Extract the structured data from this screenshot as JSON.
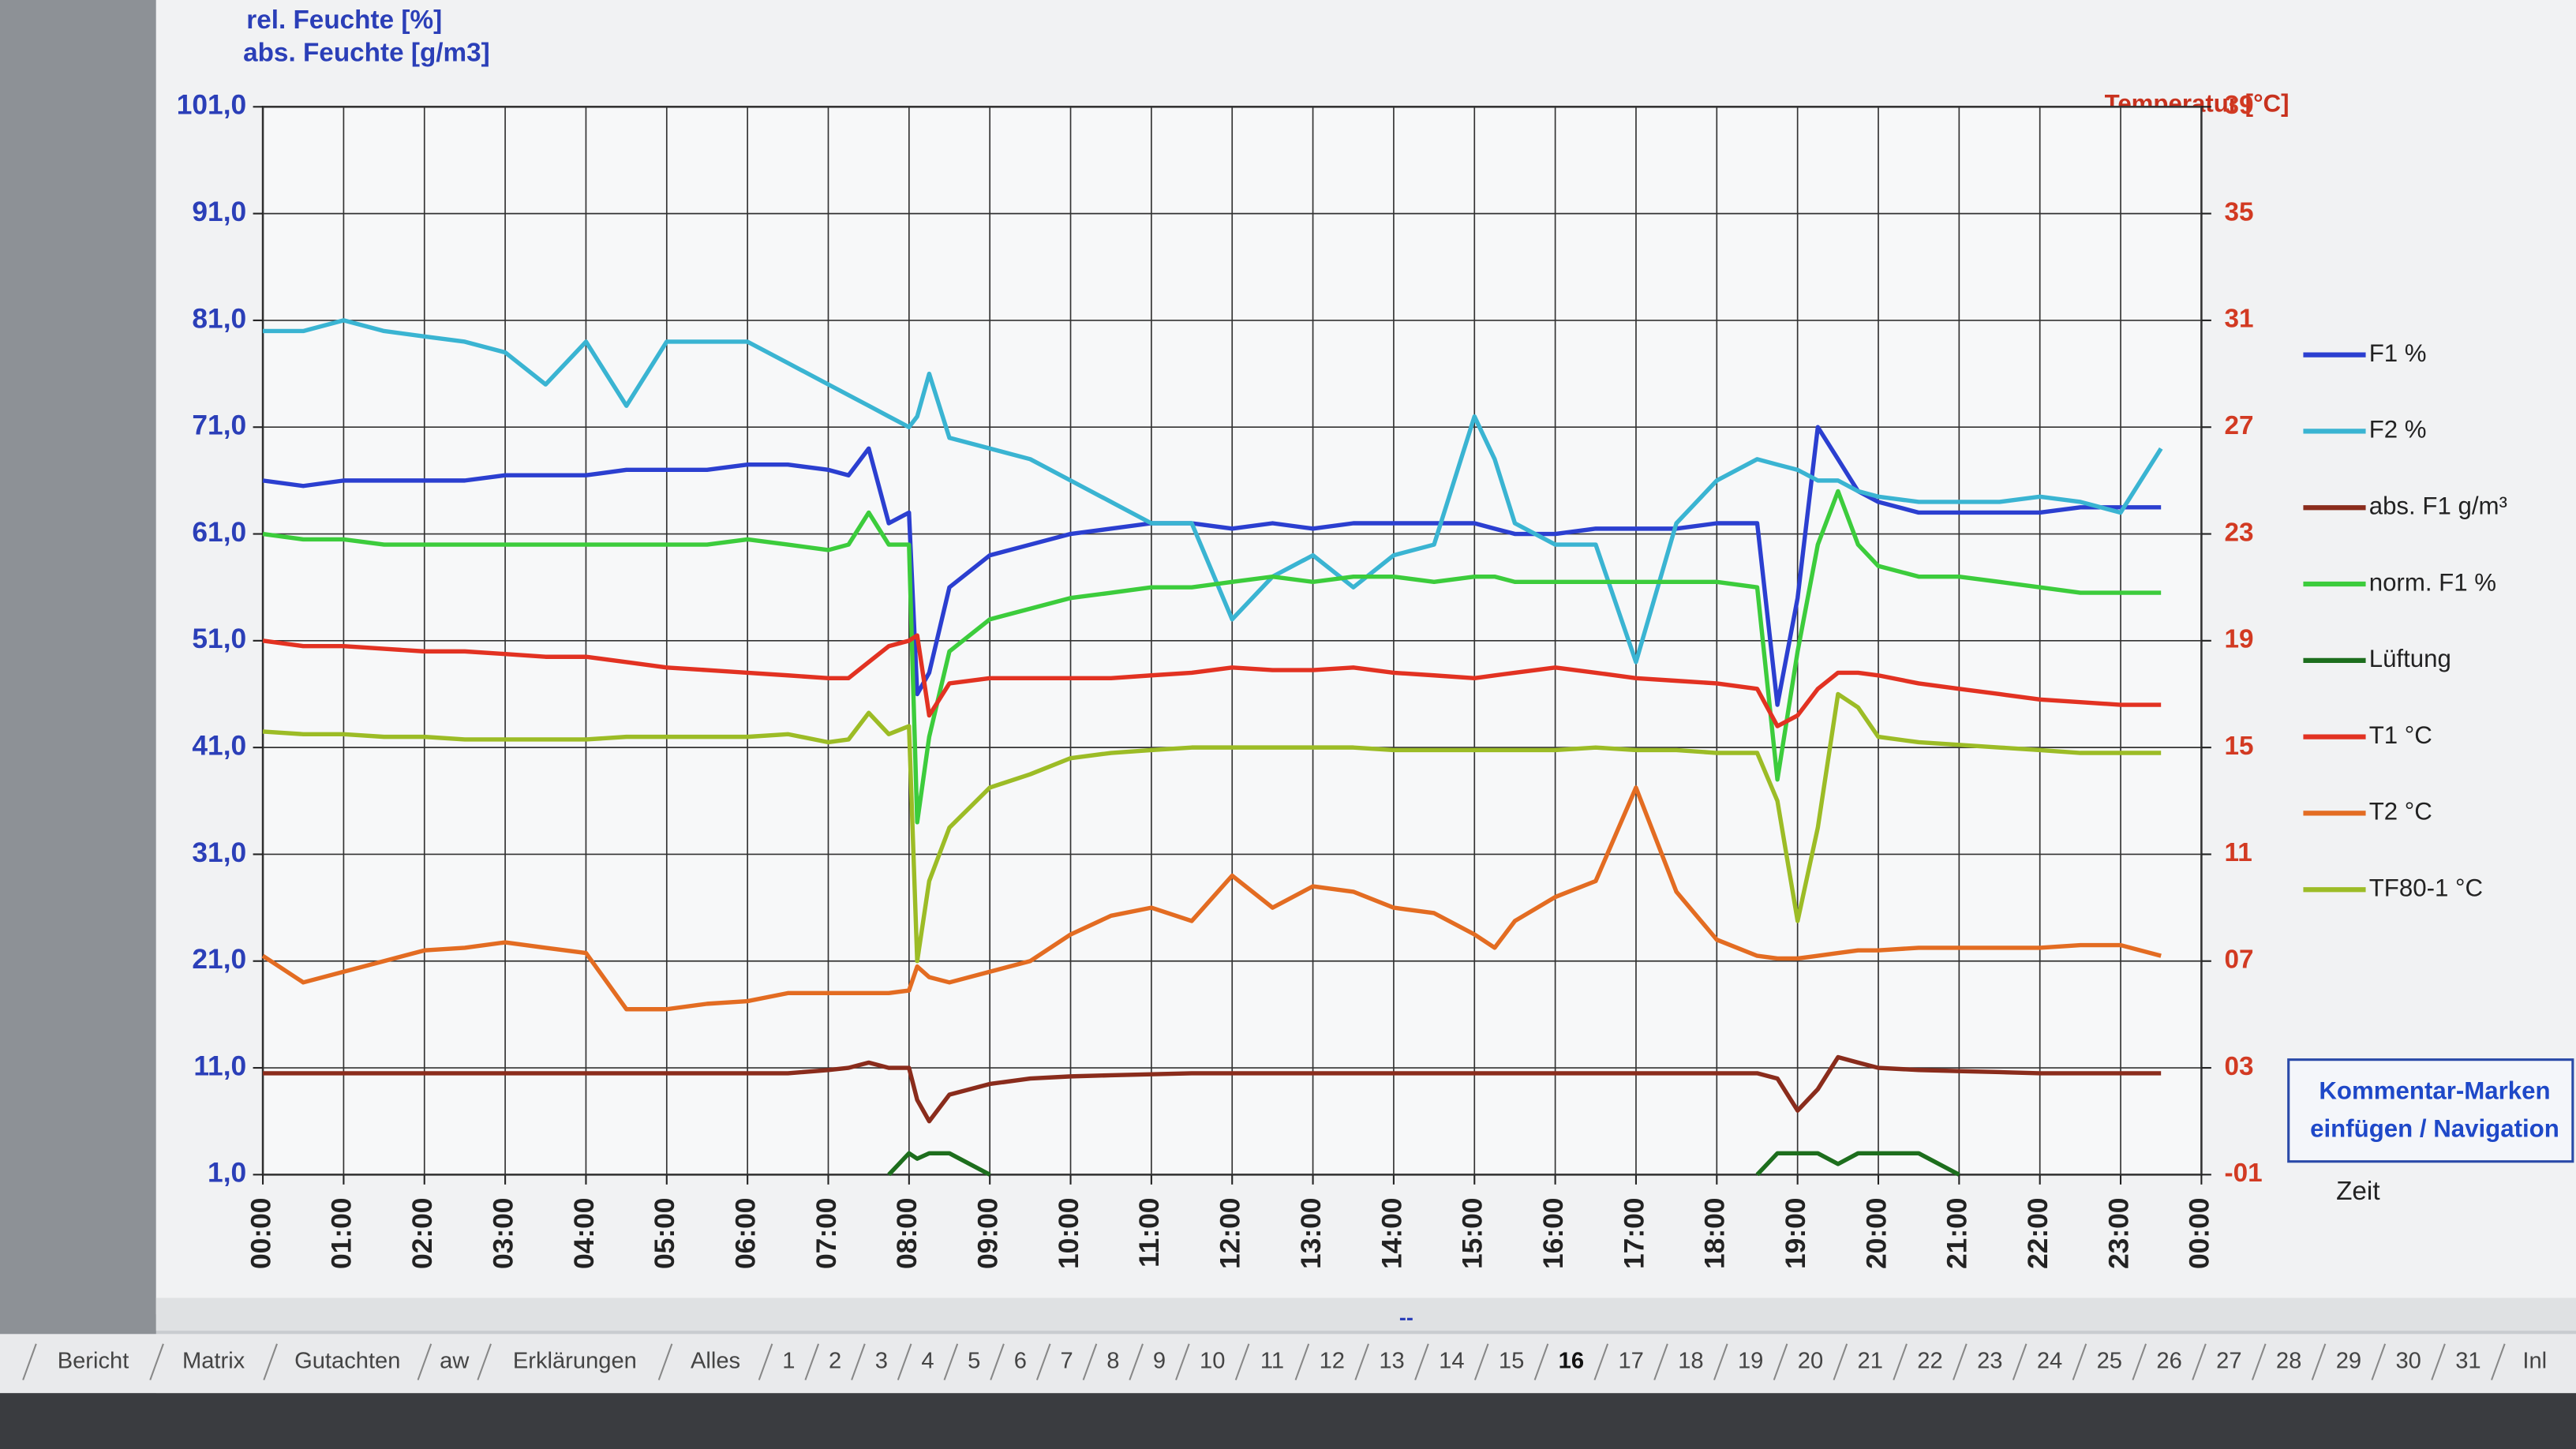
{
  "chart_data": {
    "type": "line",
    "y_label_lines": [
      "rel. Feuchte [%]",
      "abs. Feuchte [g/m3]"
    ],
    "y2_label": "Temperatur [°C]",
    "x_label": "Zeit",
    "x": [
      0,
      0.5,
      1,
      1.5,
      2,
      2.5,
      3,
      3.5,
      4,
      4.5,
      5,
      5.5,
      6,
      6.5,
      7,
      7.25,
      7.5,
      7.75,
      8,
      8.1,
      8.25,
      8.5,
      9,
      9.5,
      10,
      10.5,
      11,
      11.5,
      12,
      12.5,
      13,
      13.5,
      14,
      14.5,
      15,
      15.25,
      15.5,
      16,
      16.5,
      17,
      17.5,
      18,
      18.5,
      18.75,
      19,
      19.25,
      19.5,
      19.75,
      20,
      20.5,
      21,
      21.5,
      22,
      22.5,
      23,
      23.5
    ],
    "xlim": [
      0,
      24
    ],
    "xticks": [
      {
        "value": 0,
        "label": "00:00"
      },
      {
        "value": 1,
        "label": "01:00"
      },
      {
        "value": 2,
        "label": "02:00"
      },
      {
        "value": 3,
        "label": "03:00"
      },
      {
        "value": 4,
        "label": "04:00"
      },
      {
        "value": 5,
        "label": "05:00"
      },
      {
        "value": 6,
        "label": "06:00"
      },
      {
        "value": 7,
        "label": "07:00"
      },
      {
        "value": 8,
        "label": "08:00"
      },
      {
        "value": 9,
        "label": "09:00"
      },
      {
        "value": 10,
        "label": "10:00"
      },
      {
        "value": 11,
        "label": "11:00"
      },
      {
        "value": 12,
        "label": "12:00"
      },
      {
        "value": 13,
        "label": "13:00"
      },
      {
        "value": 14,
        "label": "14:00"
      },
      {
        "value": 15,
        "label": "15:00"
      },
      {
        "value": 16,
        "label": "16:00"
      },
      {
        "value": 17,
        "label": "17:00"
      },
      {
        "value": 18,
        "label": "18:00"
      },
      {
        "value": 19,
        "label": "19:00"
      },
      {
        "value": 20,
        "label": "20:00"
      },
      {
        "value": 21,
        "label": "21:00"
      },
      {
        "value": 22,
        "label": "22:00"
      },
      {
        "value": 23,
        "label": "23:00"
      },
      {
        "value": 24,
        "label": "00:00"
      }
    ],
    "ylim": [
      1,
      101
    ],
    "yticks": [
      {
        "value": 1,
        "label": "1,0"
      },
      {
        "value": 11,
        "label": "11,0"
      },
      {
        "value": 21,
        "label": "21,0"
      },
      {
        "value": 31,
        "label": "31,0"
      },
      {
        "value": 41,
        "label": "41,0"
      },
      {
        "value": 51,
        "label": "51,0"
      },
      {
        "value": 61,
        "label": "61,0"
      },
      {
        "value": 71,
        "label": "71,0"
      },
      {
        "value": 81,
        "label": "81,0"
      },
      {
        "value": 91,
        "label": "91,0"
      },
      {
        "value": 101,
        "label": "101,0"
      }
    ],
    "y2lim": [
      -1,
      39
    ],
    "y2ticks": [
      {
        "value": -1,
        "label": "-01"
      },
      {
        "value": 3,
        "label": "03"
      },
      {
        "value": 7,
        "label": "07"
      },
      {
        "value": 11,
        "label": "11"
      },
      {
        "value": 15,
        "label": "15"
      },
      {
        "value": 19,
        "label": "19"
      },
      {
        "value": 23,
        "label": "23"
      },
      {
        "value": 27,
        "label": "27"
      },
      {
        "value": 31,
        "label": "31"
      },
      {
        "value": 35,
        "label": "35"
      },
      {
        "value": 39,
        "label": "39"
      }
    ],
    "grid": true,
    "legend": "right",
    "series": [
      {
        "name": "F1 %",
        "color": "#2b3fd0",
        "values": [
          66,
          65.5,
          66,
          66,
          66,
          66,
          66.5,
          66.5,
          66.5,
          67,
          67,
          67,
          67.5,
          67.5,
          67,
          66.5,
          69,
          62,
          63,
          46,
          48,
          56,
          59,
          60,
          61,
          61.5,
          62,
          62,
          61.5,
          62,
          61.5,
          62,
          62,
          62,
          62,
          61.5,
          61,
          61,
          61.5,
          61.5,
          61.5,
          62,
          62,
          45,
          55,
          71,
          68,
          65,
          64,
          63,
          63,
          63,
          63,
          63.5,
          63.5,
          63.5
        ]
      },
      {
        "name": "F2 %",
        "color": "#3ab4d2",
        "values": [
          80,
          80,
          81,
          80,
          79.5,
          79,
          78,
          75,
          79,
          73,
          79,
          79,
          79,
          77,
          75,
          74,
          73,
          72,
          71,
          72,
          76,
          70,
          69,
          68,
          66,
          64,
          62,
          62,
          53,
          57,
          59,
          56,
          59,
          60,
          72,
          68,
          62,
          60,
          60,
          49,
          62,
          66,
          68,
          67.5,
          67,
          66,
          66,
          65,
          64.5,
          64,
          64,
          64,
          64.5,
          64,
          63,
          69
        ]
      },
      {
        "name": "abs. F1 g/m³",
        "color": "#8a2c1c",
        "values": [
          10.5,
          10.5,
          10.5,
          10.5,
          10.5,
          10.5,
          10.5,
          10.5,
          10.5,
          10.5,
          10.5,
          10.5,
          10.5,
          10.5,
          10.8,
          11,
          11.5,
          11,
          11,
          8,
          6,
          8.5,
          9.5,
          10,
          10.2,
          10.3,
          10.4,
          10.5,
          10.5,
          10.5,
          10.5,
          10.5,
          10.5,
          10.5,
          10.5,
          10.5,
          10.5,
          10.5,
          10.5,
          10.5,
          10.5,
          10.5,
          10.5,
          10,
          7,
          9,
          12,
          11.5,
          11,
          10.8,
          10.7,
          10.6,
          10.5,
          10.5,
          10.5,
          10.5
        ]
      },
      {
        "name": "norm. F1 %",
        "color": "#3ccc3c",
        "values": [
          61,
          60.5,
          60.5,
          60,
          60,
          60,
          60,
          60,
          60,
          60,
          60,
          60,
          60.5,
          60,
          59.5,
          60,
          63,
          60,
          60,
          34,
          42,
          50,
          53,
          54,
          55,
          55.5,
          56,
          56,
          56.5,
          57,
          56.5,
          57,
          57,
          56.5,
          57,
          57,
          56.5,
          56.5,
          56.5,
          56.5,
          56.5,
          56.5,
          56,
          38,
          50,
          60,
          65,
          60,
          58,
          57,
          57,
          56.5,
          56,
          55.5,
          55.5,
          55.5
        ]
      },
      {
        "name": "Lüftung",
        "color": "#1d6e1d",
        "values": [
          null,
          null,
          null,
          null,
          null,
          null,
          null,
          null,
          null,
          null,
          null,
          null,
          null,
          null,
          null,
          null,
          null,
          1,
          3,
          2.5,
          3,
          3,
          1,
          null,
          null,
          null,
          null,
          null,
          null,
          null,
          null,
          null,
          null,
          null,
          null,
          null,
          null,
          null,
          null,
          null,
          null,
          null,
          1,
          3,
          3,
          3,
          2,
          3,
          3,
          3,
          1,
          null,
          null,
          null,
          null,
          null
        ]
      },
      {
        "name": "T1 °C",
        "color": "#e23222",
        "axis": "y2",
        "values": [
          19,
          18.8,
          18.8,
          18.7,
          18.6,
          18.6,
          18.5,
          18.4,
          18.4,
          18.2,
          18,
          17.9,
          17.8,
          17.7,
          17.6,
          17.6,
          18.2,
          18.8,
          19,
          19.2,
          16.2,
          17.4,
          17.6,
          17.6,
          17.6,
          17.6,
          17.7,
          17.8,
          18,
          17.9,
          17.9,
          18,
          17.8,
          17.7,
          17.6,
          17.7,
          17.8,
          18,
          17.8,
          17.6,
          17.5,
          17.4,
          17.2,
          15.8,
          16.2,
          17.2,
          17.8,
          17.8,
          17.7,
          17.4,
          17.2,
          17,
          16.8,
          16.7,
          16.6,
          16.6
        ]
      },
      {
        "name": "T2 °C",
        "color": "#e36c22",
        "axis": "y2",
        "values": [
          7.2,
          6.2,
          6.6,
          7,
          7.4,
          7.5,
          7.7,
          7.5,
          7.3,
          5.2,
          5.2,
          5.4,
          5.5,
          5.8,
          5.8,
          5.8,
          5.8,
          5.8,
          5.9,
          6.8,
          6.4,
          6.2,
          6.6,
          7,
          8,
          8.7,
          9,
          8.5,
          10.2,
          9,
          9.8,
          9.6,
          9,
          8.8,
          8,
          7.5,
          8.5,
          9.4,
          10,
          13.5,
          9.6,
          7.8,
          7.2,
          7.1,
          7.1,
          7.2,
          7.3,
          7.4,
          7.4,
          7.5,
          7.5,
          7.5,
          7.5,
          7.6,
          7.6,
          7.2
        ]
      },
      {
        "name": "TF80-1 °C",
        "color": "#9cbc26",
        "axis": "y2",
        "values": [
          15.6,
          15.5,
          15.5,
          15.4,
          15.4,
          15.3,
          15.3,
          15.3,
          15.3,
          15.4,
          15.4,
          15.4,
          15.4,
          15.5,
          15.2,
          15.3,
          16.3,
          15.5,
          15.8,
          7,
          10,
          12,
          13.5,
          14,
          14.6,
          14.8,
          14.9,
          15,
          15,
          15,
          15,
          15,
          14.9,
          14.9,
          14.9,
          14.9,
          14.9,
          14.9,
          15,
          14.9,
          14.9,
          14.8,
          14.8,
          13,
          8.5,
          12,
          17,
          16.5,
          15.4,
          15.2,
          15.1,
          15,
          14.9,
          14.8,
          14.8,
          14.8
        ]
      }
    ]
  },
  "ui": {
    "comment_button": [
      "Kommentar-Marken",
      "einfügen / Navigation"
    ],
    "marker": "--",
    "tabs": [
      "Bericht",
      "Matrix",
      "Gutachten",
      "aw",
      "Erklärungen",
      "Alles",
      "1",
      "2",
      "3",
      "4",
      "5",
      "6",
      "7",
      "8",
      "9",
      "10",
      "11",
      "12",
      "13",
      "14",
      "15",
      "16",
      "17",
      "18",
      "19",
      "20",
      "21",
      "22",
      "23",
      "24",
      "25",
      "26",
      "27",
      "28",
      "29",
      "30",
      "31",
      "Inl"
    ],
    "active_tab_index": 21
  }
}
